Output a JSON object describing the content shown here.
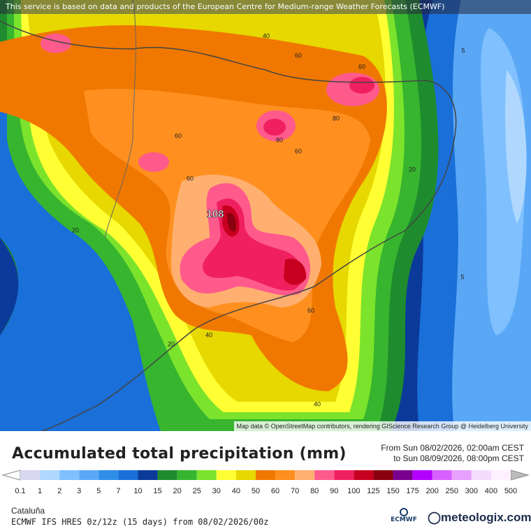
{
  "map": {
    "notice": "This service is based on data and products of the European Centre for Medium-range Weather Forecasts (ECMWF)",
    "attribution": "Map data © OpenStreetMap contributors, rendering GIScience Research Group @ Heidelberg University",
    "contour_labels": [
      "40",
      "60",
      "60",
      "5",
      "80",
      "80",
      "60",
      "60",
      "20",
      "60",
      "108",
      "20",
      "5",
      "60",
      "40",
      "20",
      "40"
    ]
  },
  "footer": {
    "title": "Accumulated total precipitation (mm)",
    "from": "From Sun 08/02/2026, 02:00am CEST",
    "to": "to Sun 08/09/2026, 08:00pm CEST",
    "legend_labels": [
      "0.1",
      "1",
      "2",
      "3",
      "5",
      "7",
      "10",
      "15",
      "20",
      "25",
      "30",
      "40",
      "50",
      "60",
      "70",
      "80",
      "90",
      "100",
      "125",
      "150",
      "175",
      "200",
      "250",
      "300",
      "400",
      "500"
    ],
    "region": "Cataluña",
    "model": "ECMWF IFS HRES 0z/12z (15 days) from 08/02/2026/00z",
    "ecmwf_logo": "ECMWF",
    "brand": "meteologix.com"
  }
}
